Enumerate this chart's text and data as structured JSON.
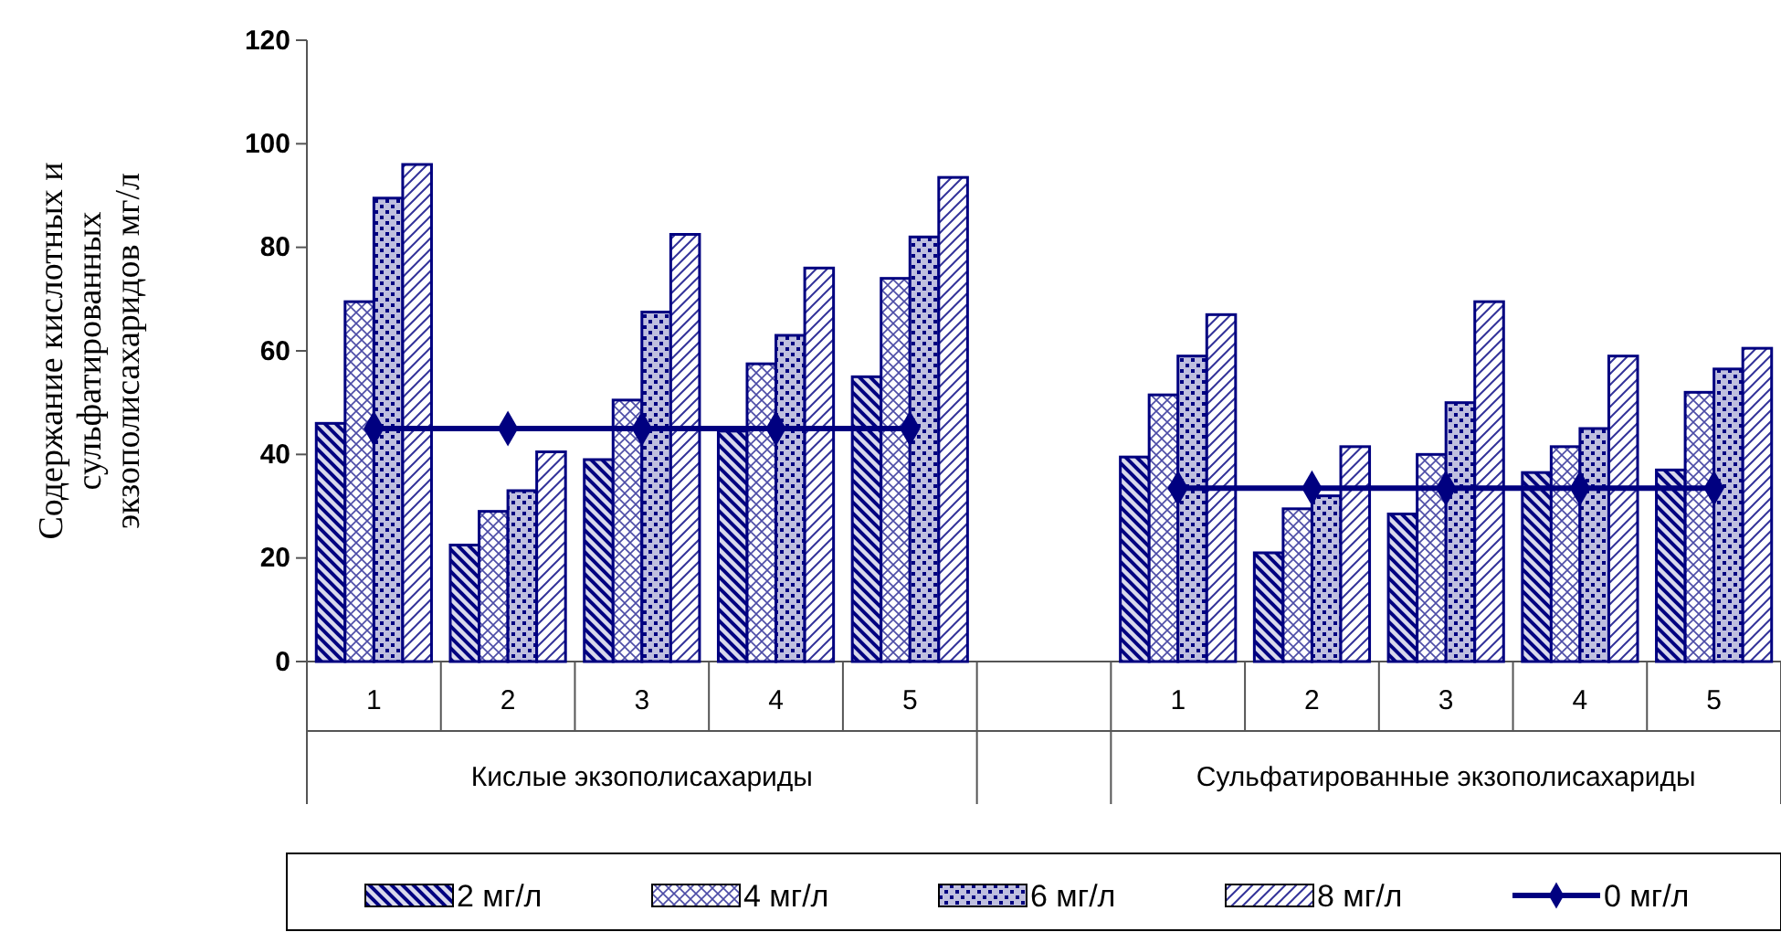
{
  "chart_data": {
    "type": "bar",
    "ylabel": "Содержание кислотных и сульфатированных экзополисахаридов мг/л",
    "categories": [
      "1",
      "2",
      "3",
      "4",
      "5",
      null,
      "1",
      "2",
      "3",
      "4",
      "5"
    ],
    "series": [
      {
        "name": "2 мг/л",
        "color": "#000080",
        "values": [
          46,
          22.5,
          39,
          44.5,
          55,
          null,
          39.5,
          21,
          28.5,
          36.5,
          37
        ]
      },
      {
        "name": "4 мг/л",
        "color": "#000080",
        "values": [
          69.5,
          29,
          50.5,
          57.5,
          74,
          null,
          51.5,
          29.5,
          40,
          41.5,
          52
        ]
      },
      {
        "name": "6 мг/л",
        "color": "#000080",
        "values": [
          89.5,
          33,
          67.5,
          63,
          82,
          null,
          59,
          32,
          50,
          45,
          56.5
        ]
      },
      {
        "name": "8 мг/л",
        "color": "#000080",
        "values": [
          96,
          40.5,
          82.5,
          76,
          93.5,
          null,
          67,
          41.5,
          69.5,
          59,
          60.5
        ]
      },
      {
        "name": "0 мг/л",
        "type": "line",
        "color": "#000080",
        "marker": "diamond",
        "values": [
          45,
          45,
          45,
          45,
          45,
          null,
          33.5,
          33.5,
          33.5,
          33.5,
          33.5
        ]
      }
    ],
    "ylim": [
      0,
      120
    ],
    "yticks": [
      0,
      20,
      40,
      60,
      80,
      100,
      120
    ],
    "grid": false,
    "legend": "bottom",
    "annotations": [
      "Кислые экзополисахариды",
      "Сульфатированные экзополисахариды"
    ]
  }
}
